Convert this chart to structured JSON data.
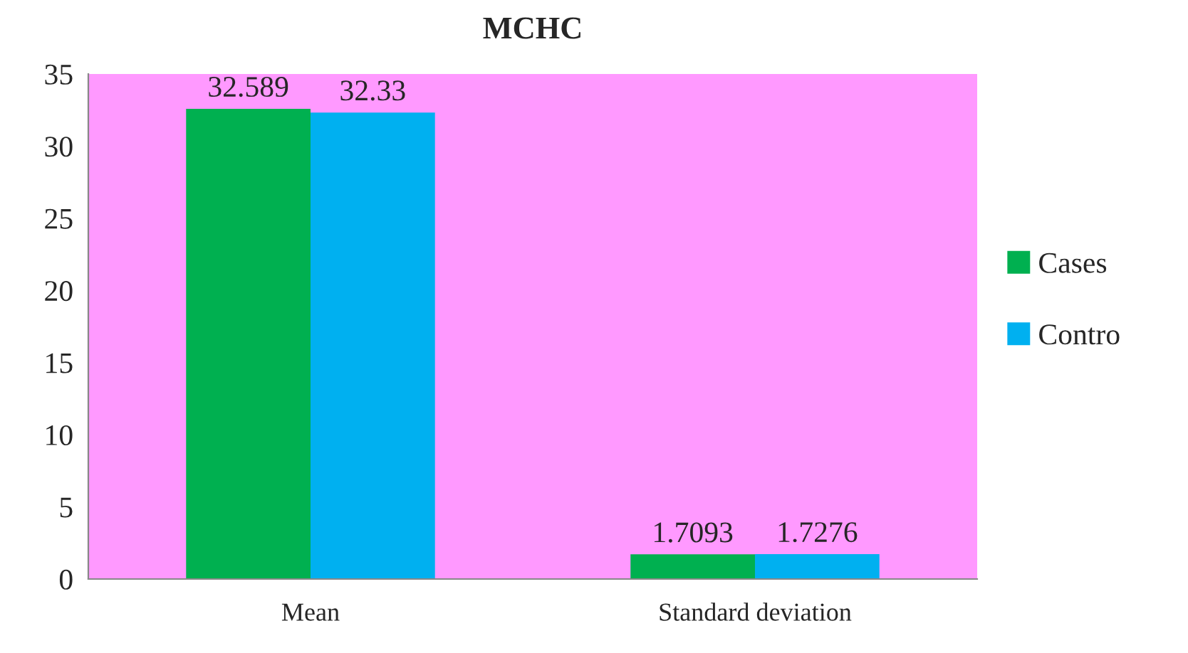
{
  "chart_data": {
    "type": "bar",
    "title": "MCHC",
    "categories": [
      "Mean",
      "Standard deviation"
    ],
    "series": [
      {
        "name": "Cases",
        "color": "#00b050",
        "values": [
          32.589,
          1.7093
        ]
      },
      {
        "name": "Contro",
        "color": "#00b0f0",
        "values": [
          32.33,
          1.7276
        ]
      }
    ],
    "ylim": [
      0,
      35
    ],
    "yticks": [
      0,
      5,
      10,
      15,
      20,
      25,
      30,
      35
    ],
    "data_labels": true,
    "legend": "right",
    "grid": false
  }
}
